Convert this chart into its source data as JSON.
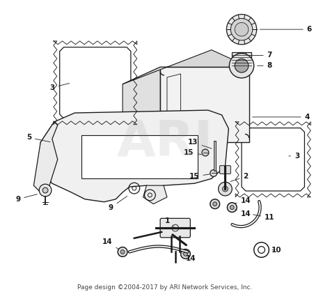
{
  "footer_text": "Page design ©2004-2017 by ARI Network Services, Inc.",
  "footer_fontsize": 6.5,
  "background_color": "#ffffff",
  "diagram_color": "#1a1a1a",
  "figsize": [
    4.74,
    4.19
  ],
  "dpi": 100,
  "watermark_text": "ARI",
  "watermark_alpha": 0.13,
  "watermark_fontsize": 52,
  "label_fontsize": 7.5
}
